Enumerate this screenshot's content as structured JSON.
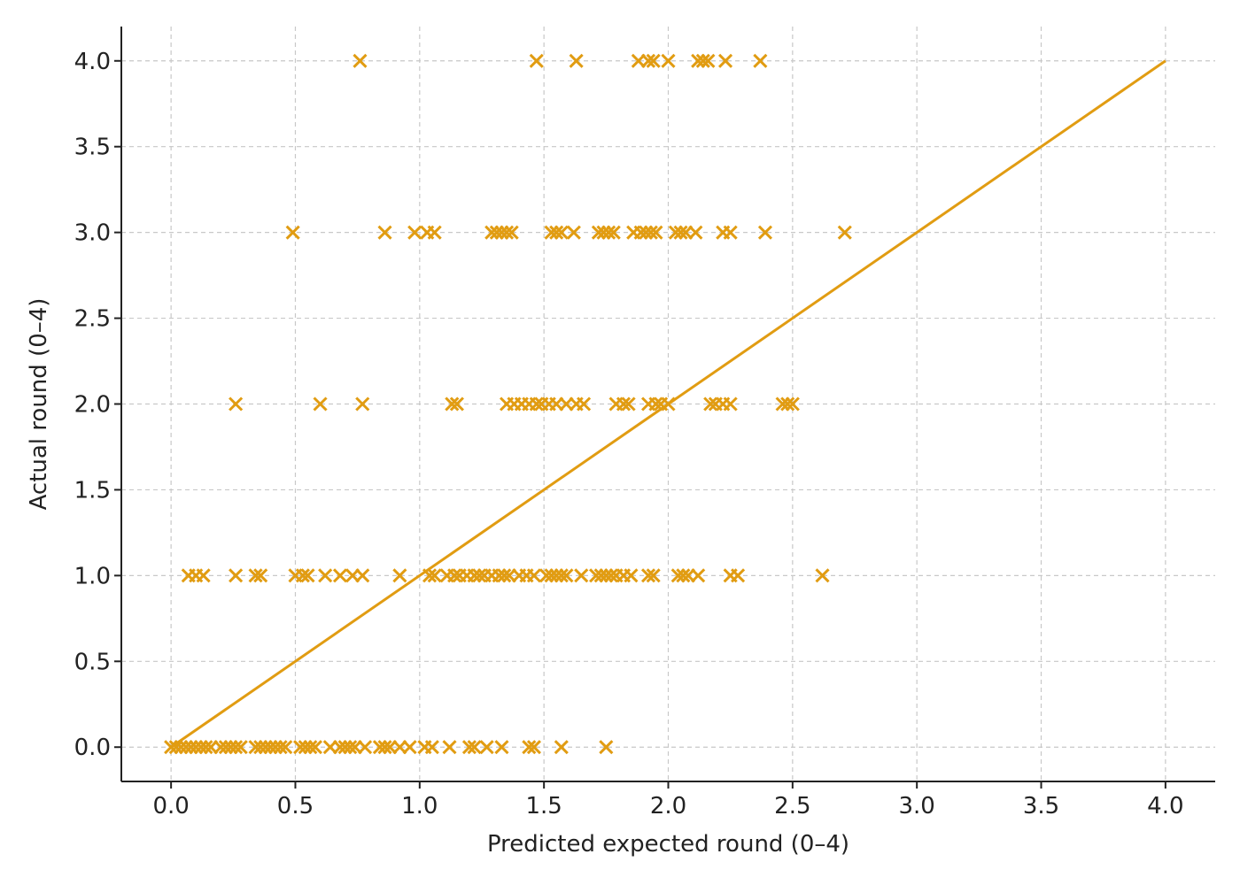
{
  "chart_data": {
    "type": "scatter",
    "title": "",
    "xlabel": "Predicted expected round (0–4)",
    "ylabel": "Actual round (0–4)",
    "xlim": [
      -0.2,
      4.2
    ],
    "ylim": [
      -0.2,
      4.2
    ],
    "x_ticks": [
      "0.0",
      "0.5",
      "1.0",
      "1.5",
      "2.0",
      "2.5",
      "3.0",
      "3.5",
      "4.0"
    ],
    "y_ticks": [
      "0.0",
      "0.5",
      "1.0",
      "1.5",
      "2.0",
      "2.5",
      "3.0",
      "3.5",
      "4.0"
    ],
    "grid": true,
    "marker": "x",
    "color": "#E19C12",
    "reference_line": {
      "x": [
        0,
        4
      ],
      "y": [
        0,
        4
      ]
    },
    "series": [
      {
        "points": [
          [
            0.76,
            4
          ],
          [
            1.47,
            4
          ],
          [
            1.63,
            4
          ],
          [
            1.88,
            4
          ],
          [
            1.92,
            4
          ],
          [
            1.94,
            4
          ],
          [
            2.0,
            4
          ],
          [
            2.12,
            4
          ],
          [
            2.14,
            4
          ],
          [
            2.16,
            4
          ],
          [
            2.23,
            4
          ],
          [
            2.37,
            4
          ],
          [
            0.49,
            3
          ],
          [
            0.86,
            3
          ],
          [
            0.98,
            3
          ],
          [
            1.03,
            3
          ],
          [
            1.06,
            3
          ],
          [
            1.29,
            3
          ],
          [
            1.31,
            3
          ],
          [
            1.33,
            3
          ],
          [
            1.35,
            3
          ],
          [
            1.37,
            3
          ],
          [
            1.53,
            3
          ],
          [
            1.55,
            3
          ],
          [
            1.57,
            3
          ],
          [
            1.62,
            3
          ],
          [
            1.72,
            3
          ],
          [
            1.74,
            3
          ],
          [
            1.76,
            3
          ],
          [
            1.78,
            3
          ],
          [
            1.86,
            3
          ],
          [
            1.89,
            3
          ],
          [
            1.91,
            3
          ],
          [
            1.93,
            3
          ],
          [
            1.95,
            3
          ],
          [
            2.03,
            3
          ],
          [
            2.05,
            3
          ],
          [
            2.07,
            3
          ],
          [
            2.11,
            3
          ],
          [
            2.22,
            3
          ],
          [
            2.25,
            3
          ],
          [
            2.39,
            3
          ],
          [
            2.71,
            3
          ],
          [
            0.26,
            2
          ],
          [
            0.6,
            2
          ],
          [
            0.77,
            2
          ],
          [
            1.13,
            2
          ],
          [
            1.15,
            2
          ],
          [
            1.35,
            2
          ],
          [
            1.38,
            2
          ],
          [
            1.41,
            2
          ],
          [
            1.44,
            2
          ],
          [
            1.47,
            2
          ],
          [
            1.49,
            2
          ],
          [
            1.52,
            2
          ],
          [
            1.55,
            2
          ],
          [
            1.59,
            2
          ],
          [
            1.63,
            2
          ],
          [
            1.66,
            2
          ],
          [
            1.79,
            2
          ],
          [
            1.82,
            2
          ],
          [
            1.84,
            2
          ],
          [
            1.92,
            2
          ],
          [
            1.95,
            2
          ],
          [
            1.97,
            2
          ],
          [
            2.0,
            2
          ],
          [
            2.17,
            2
          ],
          [
            2.19,
            2
          ],
          [
            2.22,
            2
          ],
          [
            2.25,
            2
          ],
          [
            2.46,
            2
          ],
          [
            2.48,
            2
          ],
          [
            2.5,
            2
          ],
          [
            0.07,
            1
          ],
          [
            0.1,
            1
          ],
          [
            0.13,
            1
          ],
          [
            0.26,
            1
          ],
          [
            0.34,
            1
          ],
          [
            0.36,
            1
          ],
          [
            0.5,
            1
          ],
          [
            0.53,
            1
          ],
          [
            0.55,
            1
          ],
          [
            0.62,
            1
          ],
          [
            0.68,
            1
          ],
          [
            0.73,
            1
          ],
          [
            0.77,
            1
          ],
          [
            0.92,
            1
          ],
          [
            1.04,
            1
          ],
          [
            1.06,
            1
          ],
          [
            1.11,
            1
          ],
          [
            1.14,
            1
          ],
          [
            1.16,
            1
          ],
          [
            1.19,
            1
          ],
          [
            1.22,
            1
          ],
          [
            1.24,
            1
          ],
          [
            1.26,
            1
          ],
          [
            1.29,
            1
          ],
          [
            1.32,
            1
          ],
          [
            1.34,
            1
          ],
          [
            1.36,
            1
          ],
          [
            1.4,
            1
          ],
          [
            1.43,
            1
          ],
          [
            1.46,
            1
          ],
          [
            1.51,
            1
          ],
          [
            1.53,
            1
          ],
          [
            1.55,
            1
          ],
          [
            1.57,
            1
          ],
          [
            1.59,
            1
          ],
          [
            1.65,
            1
          ],
          [
            1.71,
            1
          ],
          [
            1.73,
            1
          ],
          [
            1.75,
            1
          ],
          [
            1.77,
            1
          ],
          [
            1.79,
            1
          ],
          [
            1.82,
            1
          ],
          [
            1.85,
            1
          ],
          [
            1.92,
            1
          ],
          [
            1.94,
            1
          ],
          [
            2.04,
            1
          ],
          [
            2.06,
            1
          ],
          [
            2.08,
            1
          ],
          [
            2.12,
            1
          ],
          [
            2.25,
            1
          ],
          [
            2.28,
            1
          ],
          [
            2.62,
            1
          ],
          [
            0.0,
            0
          ],
          [
            0.02,
            0
          ],
          [
            0.04,
            0
          ],
          [
            0.06,
            0
          ],
          [
            0.08,
            0
          ],
          [
            0.1,
            0
          ],
          [
            0.12,
            0
          ],
          [
            0.14,
            0
          ],
          [
            0.16,
            0
          ],
          [
            0.2,
            0
          ],
          [
            0.22,
            0
          ],
          [
            0.24,
            0
          ],
          [
            0.26,
            0
          ],
          [
            0.28,
            0
          ],
          [
            0.34,
            0
          ],
          [
            0.36,
            0
          ],
          [
            0.38,
            0
          ],
          [
            0.4,
            0
          ],
          [
            0.42,
            0
          ],
          [
            0.44,
            0
          ],
          [
            0.46,
            0
          ],
          [
            0.52,
            0
          ],
          [
            0.54,
            0
          ],
          [
            0.56,
            0
          ],
          [
            0.58,
            0
          ],
          [
            0.64,
            0
          ],
          [
            0.68,
            0
          ],
          [
            0.7,
            0
          ],
          [
            0.72,
            0
          ],
          [
            0.74,
            0
          ],
          [
            0.78,
            0
          ],
          [
            0.84,
            0
          ],
          [
            0.86,
            0
          ],
          [
            0.88,
            0
          ],
          [
            0.92,
            0
          ],
          [
            0.96,
            0
          ],
          [
            1.02,
            0
          ],
          [
            1.05,
            0
          ],
          [
            1.12,
            0
          ],
          [
            1.2,
            0
          ],
          [
            1.22,
            0
          ],
          [
            1.27,
            0
          ],
          [
            1.33,
            0
          ],
          [
            1.44,
            0
          ],
          [
            1.46,
            0
          ],
          [
            1.57,
            0
          ],
          [
            1.75,
            0
          ]
        ]
      }
    ]
  }
}
